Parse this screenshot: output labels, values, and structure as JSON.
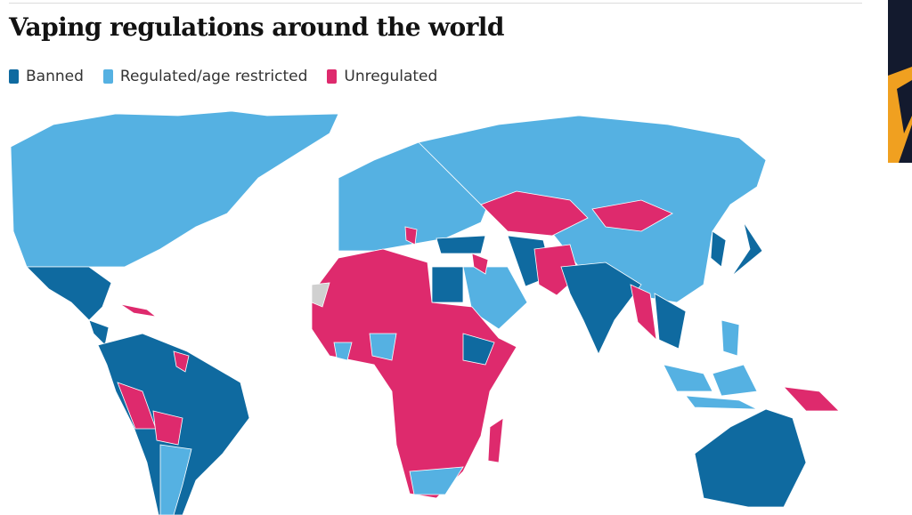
{
  "header": {
    "title": "Vaping regulations around the world"
  },
  "legend": [
    {
      "label": "Banned",
      "color": "#0f6aa0"
    },
    {
      "label": "Regulated/age restricted",
      "color": "#55b1e2"
    },
    {
      "label": "Unregulated",
      "color": "#de2a6d"
    }
  ]
}
